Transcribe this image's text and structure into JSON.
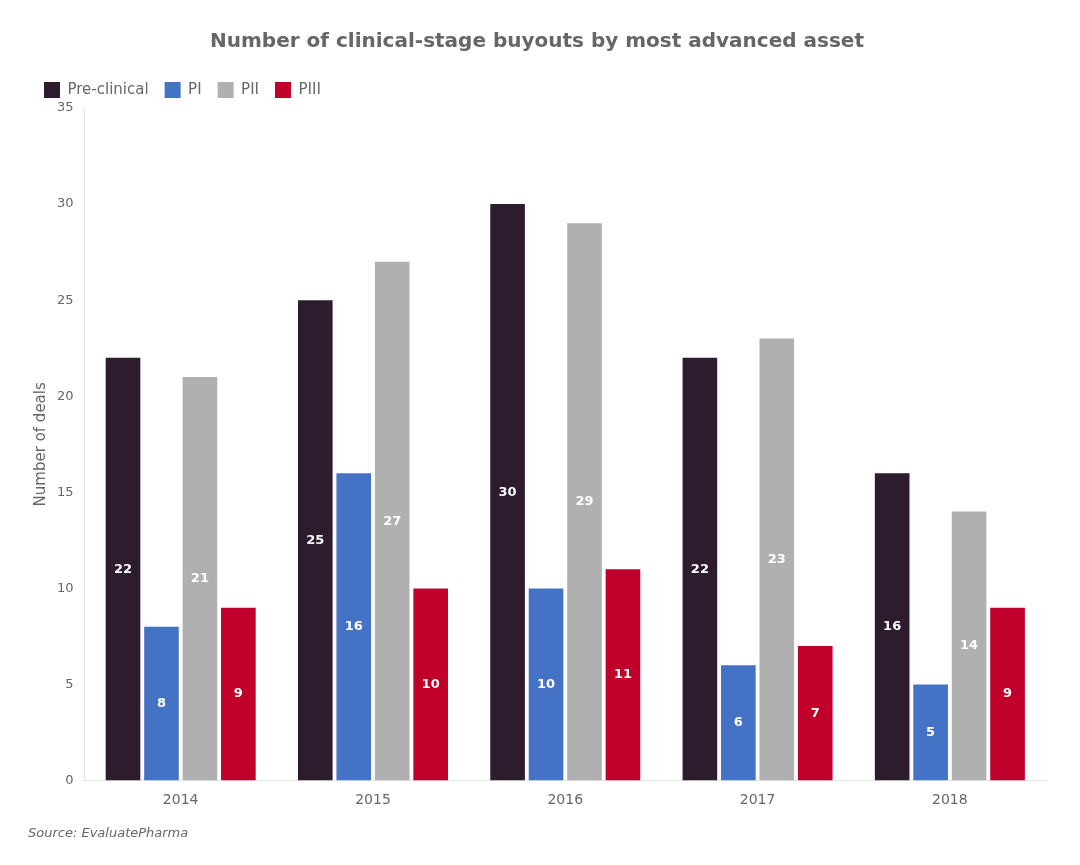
{
  "chart_data": {
    "type": "bar",
    "title": "Number of clinical-stage buyouts by most advanced asset",
    "ylabel": "Number of deals",
    "source": "Source: EvaluatePharma",
    "categories": [
      "2014",
      "2015",
      "2016",
      "2017",
      "2018"
    ],
    "series": [
      {
        "name": "Pre-clinical",
        "color": "#2d1b2e",
        "values": [
          22,
          25,
          30,
          22,
          16
        ]
      },
      {
        "name": "PI",
        "color": "#4472c4",
        "values": [
          8,
          16,
          10,
          6,
          5
        ]
      },
      {
        "name": "PII",
        "color": "#b0b0b0",
        "values": [
          21,
          27,
          29,
          23,
          14
        ]
      },
      {
        "name": "PIII",
        "color": "#c0002a",
        "values": [
          9,
          10,
          11,
          7,
          9
        ]
      }
    ],
    "ylim": [
      0,
      35
    ],
    "yticks": [
      0,
      5,
      10,
      15,
      20,
      25,
      30,
      35
    ],
    "grid": false,
    "legend": "top-left",
    "data_labels": true
  }
}
